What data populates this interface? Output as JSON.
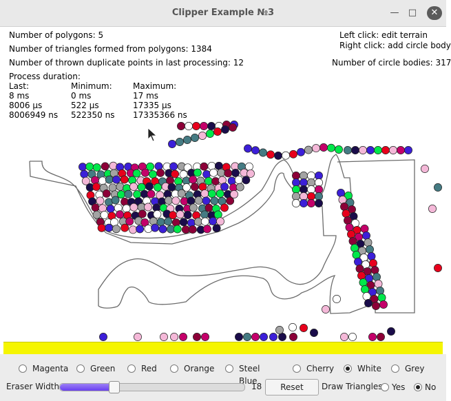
{
  "window": {
    "title": "Clipper Example №3",
    "min_icon": "minimize-icon",
    "max_icon": "maximize-icon",
    "close_icon": "close-icon"
  },
  "stats": {
    "polygons": "Number of polygons: 5",
    "triangles": "Number of triangles formed from polygons: 1384",
    "duplicates": "Number of thrown duplicate points in last processing: 12",
    "process_duration": "Process duration:",
    "col_last": "Last:",
    "col_min": "Minimum:",
    "col_max": "Maximum:",
    "last": [
      "8 ms",
      "8006 µs",
      "8006949 ns"
    ],
    "min": [
      "0 ms",
      "522 µs",
      "522350 ns"
    ],
    "max": [
      "17 ms",
      "17335 µs",
      "17335366 ns"
    ]
  },
  "help": {
    "left_click": "Left click: edit terrain",
    "right_click": "Right click: add circle body",
    "circle_bodies": "Number of circle bodies: 317"
  },
  "colors": {
    "ground": "#f5f500",
    "magenta": "#c4006a",
    "green": "#00e84a",
    "red": "#e8001c",
    "steel_blue": "#457b83",
    "cherry": "#8c0038",
    "white": "#ffffff",
    "grey": "#a3a3a3",
    "navy": "#1a0c4a",
    "indigo": "#3c1fd8",
    "pink": "#f4b8d8"
  },
  "palette": {
    "options": [
      "Magenta",
      "Green",
      "Red",
      "Orange",
      "Steel Blue",
      "Cherry",
      "White",
      "Grey"
    ],
    "selected": "White"
  },
  "controls": {
    "eraser_label": "Eraser Width",
    "eraser_value": "18",
    "eraser_fraction": 0.29,
    "reset_label": "Reset",
    "draw_triangles_label": "Draw Triangles",
    "yes": "Yes",
    "no": "No",
    "draw_triangles_selected": "No"
  }
}
